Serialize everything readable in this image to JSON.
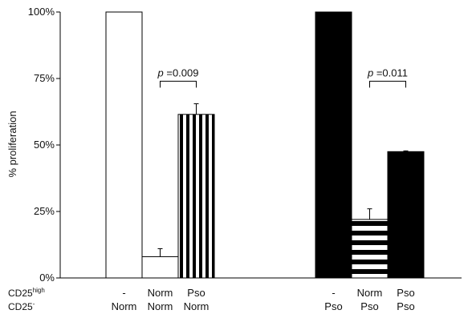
{
  "chart_data": {
    "type": "bar",
    "ylabel": "% proliferation",
    "ylim": [
      0,
      100
    ],
    "yticks": [
      {
        "value": 0,
        "label": "0%"
      },
      {
        "value": 25,
        "label": "25%"
      },
      {
        "value": 50,
        "label": "50%"
      },
      {
        "value": 75,
        "label": "75%"
      },
      {
        "value": 100,
        "label": "100%"
      }
    ],
    "row_headers": {
      "line1_main": "CD25",
      "line1_sup": "high",
      "line2_main": "CD25",
      "line2_sup": "-"
    },
    "bars": [
      {
        "cd25_high": "-",
        "cd25_neg": "Norm",
        "value": 100,
        "error": 0,
        "fill": "white"
      },
      {
        "cd25_high": "Norm",
        "cd25_neg": "Norm",
        "value": 8,
        "error": 3,
        "fill": "white"
      },
      {
        "cd25_high": "Pso",
        "cd25_neg": "Norm",
        "value": 61.5,
        "error": 4,
        "fill": "vertical-stripes"
      },
      {
        "cd25_high": "-",
        "cd25_neg": "Pso",
        "value": 100,
        "error": 0,
        "fill": "black"
      },
      {
        "cd25_high": "Norm",
        "cd25_neg": "Pso",
        "value": 22,
        "error": 4,
        "fill": "horizontal-stripes"
      },
      {
        "cd25_high": "Pso",
        "cd25_neg": "Pso",
        "value": 47.5,
        "error": 0.3,
        "fill": "black"
      }
    ],
    "annotations": [
      {
        "p_symbol": "p",
        "text": " =0.009",
        "from_bar": 1,
        "to_bar": 2,
        "bracket_value": 74
      },
      {
        "p_symbol": "p",
        "text": " =0.011",
        "from_bar": 4,
        "to_bar": 5,
        "bracket_value": 74
      }
    ],
    "grid": false,
    "legend": "none"
  }
}
